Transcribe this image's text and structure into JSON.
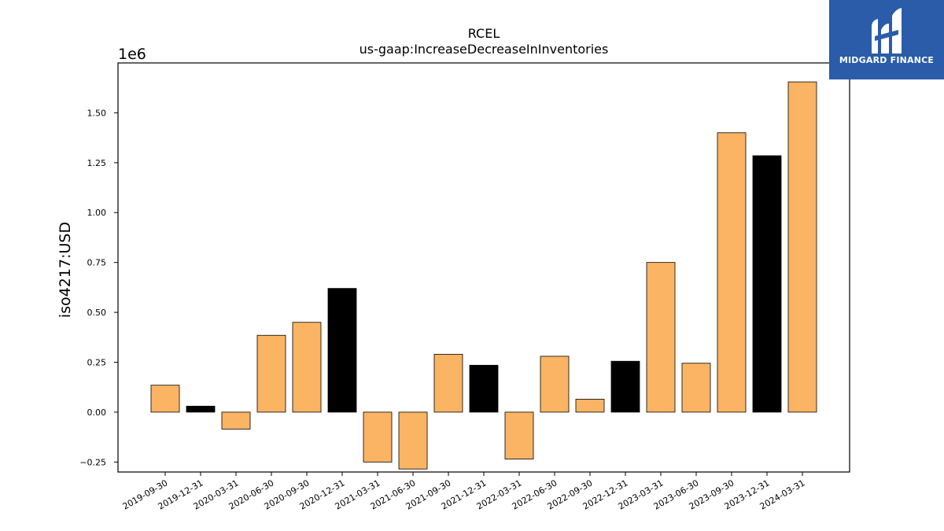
{
  "chart_data": {
    "type": "bar",
    "title": "RCEL",
    "subtitle": "us-gaap:IncreaseDecreaseInInventories",
    "ylabel": "iso4217:USD",
    "xlabel": "",
    "y_scale_label": "1e6",
    "ylim": [
      -0.3,
      1.75
    ],
    "yticks": [
      -0.25,
      0.0,
      0.25,
      0.5,
      0.75,
      1.0,
      1.25,
      1.5
    ],
    "ytick_labels": [
      "−0.25",
      "0.00",
      "0.25",
      "0.50",
      "0.75",
      "1.00",
      "1.25",
      "1.50"
    ],
    "grid": false,
    "categories": [
      "2019-09-30",
      "2019-12-31",
      "2020-03-31",
      "2020-06-30",
      "2020-09-30",
      "2020-12-31",
      "2021-03-31",
      "2021-06-30",
      "2021-09-30",
      "2021-12-31",
      "2022-03-31",
      "2022-06-30",
      "2022-09-30",
      "2022-12-31",
      "2023-03-31",
      "2023-06-30",
      "2023-09-30",
      "2023-12-31",
      "2024-03-31"
    ],
    "values": [
      0.135,
      0.03,
      -0.085,
      0.385,
      0.45,
      0.62,
      -0.25,
      -0.285,
      0.29,
      0.235,
      -0.235,
      0.28,
      0.065,
      0.255,
      0.75,
      0.245,
      1.4,
      1.285,
      1.655
    ],
    "bar_colors": [
      "#fbb464",
      "#000000",
      "#fbb464",
      "#fbb464",
      "#fbb464",
      "#000000",
      "#fbb464",
      "#fbb464",
      "#fbb464",
      "#000000",
      "#fbb464",
      "#fbb464",
      "#fbb464",
      "#000000",
      "#fbb464",
      "#fbb464",
      "#fbb464",
      "#000000",
      "#fbb464"
    ],
    "colors": {
      "quarter": "#fbb464",
      "year_end": "#000000"
    }
  },
  "logo": {
    "text": "MIDGARD FINANCE",
    "background": "#2a5caa"
  }
}
